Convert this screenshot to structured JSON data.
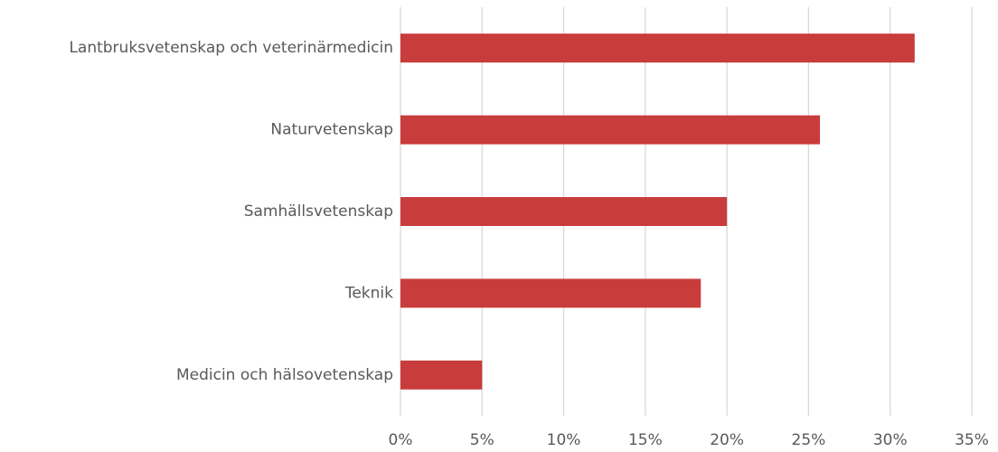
{
  "chart_data": {
    "type": "hbar",
    "categories": [
      "Lantbruksvetenskap och veterinärmedicin",
      "Naturvetenskap",
      "Samhällsvetenskap",
      "Teknik",
      "Medicin och hälsovetenskap"
    ],
    "values": [
      31.5,
      25.7,
      20.0,
      18.4,
      5.0
    ],
    "color": "#c83c3c",
    "xlim": [
      0,
      35
    ],
    "xticks": [
      {
        "value": 0,
        "label": "0%"
      },
      {
        "value": 5,
        "label": "5%"
      },
      {
        "value": 10,
        "label": "10%"
      },
      {
        "value": 15,
        "label": "15%"
      },
      {
        "value": 20,
        "label": "20%"
      },
      {
        "value": 25,
        "label": "25%"
      },
      {
        "value": 30,
        "label": "30%"
      },
      {
        "value": 35,
        "label": "35%"
      }
    ],
    "grid": true
  }
}
